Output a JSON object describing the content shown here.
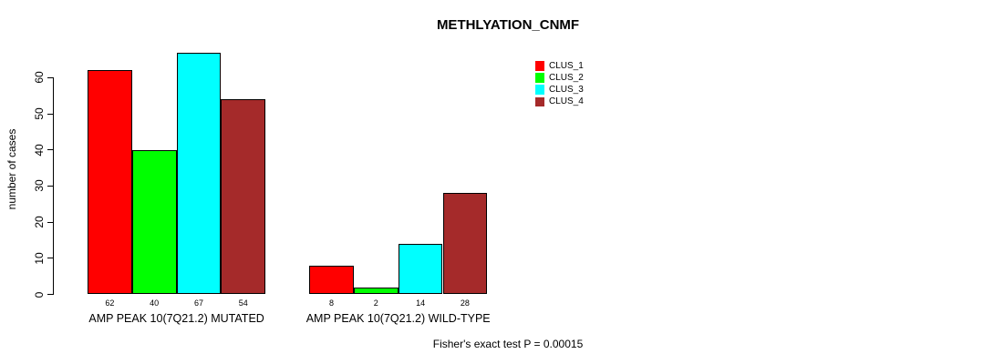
{
  "title": "METHLYATION_CNMF",
  "y_axis": {
    "label": "number of cases"
  },
  "footer": {
    "text": "Fisher's exact test P = 0.00015"
  },
  "chart_data": {
    "type": "bar",
    "title": "METHLYATION_CNMF",
    "ylabel": "number of cases",
    "xlabel": "",
    "categories": [
      "AMP PEAK 10(7Q21.2) MUTATED",
      "AMP PEAK 10(7Q21.2) WILD-TYPE"
    ],
    "series": [
      {
        "name": "CLUS_1",
        "color": "#FF0000",
        "values": [
          62,
          8
        ]
      },
      {
        "name": "CLUS_2",
        "color": "#00FF00",
        "values": [
          40,
          2
        ]
      },
      {
        "name": "CLUS_3",
        "color": "#00FFFF",
        "values": [
          67,
          14
        ]
      },
      {
        "name": "CLUS_4",
        "color": "#A52A2A",
        "values": [
          54,
          28
        ]
      }
    ],
    "bar_value_labels_shown": true,
    "yticks": [
      0,
      10,
      20,
      30,
      40,
      50,
      60
    ],
    "ylim": [
      0,
      67
    ],
    "grid": false,
    "legend_position": "top-right",
    "annotation": "Fisher's exact test P = 0.00015"
  }
}
